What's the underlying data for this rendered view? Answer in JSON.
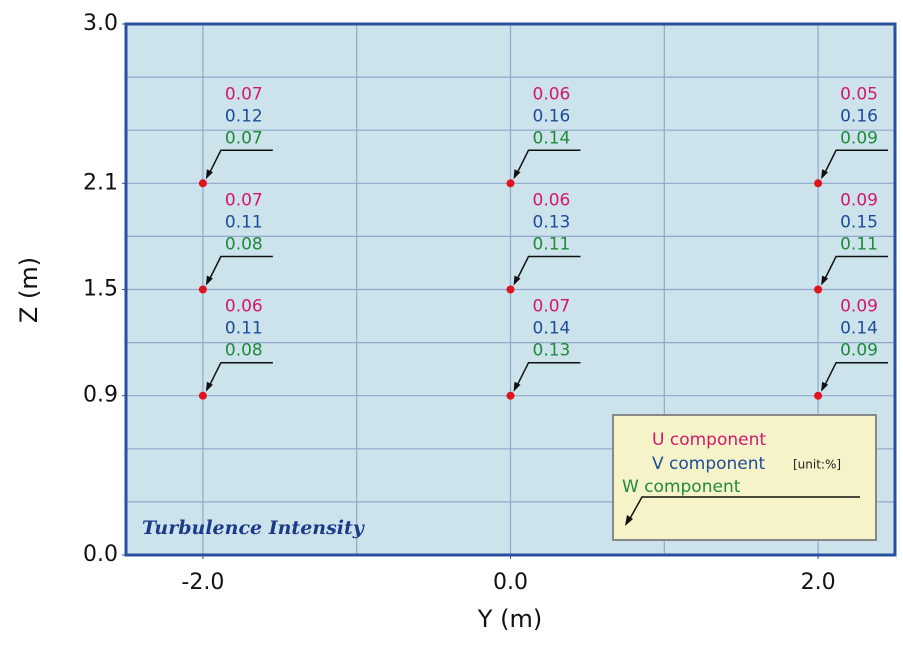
{
  "chart_data": {
    "type": "scatter",
    "annotation": "Turbulence Intensity",
    "xlabel": "Y (m)",
    "ylabel": "Z (m)",
    "xlim": [
      -2.5,
      2.5
    ],
    "ylim": [
      0,
      3
    ],
    "xticks": [
      {
        "value": -2,
        "label": "-2.0"
      },
      {
        "value": 0,
        "label": "0.0"
      },
      {
        "value": 2,
        "label": "2.0"
      }
    ],
    "yticks": [
      {
        "value": 0,
        "label": "0.0"
      },
      0.9,
      1.5,
      2.1,
      {
        "value": 3,
        "label": "3.0"
      }
    ],
    "xgrid": [
      -2,
      -1,
      0,
      1,
      2
    ],
    "ygrid": [
      0.3,
      0.6,
      0.9,
      1.2,
      1.5,
      1.8,
      2.1,
      2.4,
      2.7
    ],
    "grid": true,
    "color": "#e0141e",
    "x": [
      -2,
      -2,
      -2,
      0,
      0,
      0,
      2,
      2,
      2
    ],
    "y": [
      2.1,
      1.5,
      0.9,
      2.1,
      1.5,
      0.9,
      2.1,
      1.5,
      0.9
    ],
    "components": [
      {
        "name": "U component",
        "color": "#d2186e",
        "values": [
          0.07,
          0.07,
          0.06,
          0.06,
          0.06,
          0.07,
          0.05,
          0.09,
          0.09
        ]
      },
      {
        "name": "V component",
        "color": "#1c4c9a",
        "values": [
          0.12,
          0.11,
          0.11,
          0.16,
          0.13,
          0.14,
          0.16,
          0.15,
          0.14
        ]
      },
      {
        "name": "W component",
        "color": "#1e8a3a",
        "values": [
          0.07,
          0.08,
          0.08,
          0.14,
          0.11,
          0.13,
          0.09,
          0.11,
          0.09
        ]
      }
    ],
    "unit_note": "[unit:%]"
  }
}
